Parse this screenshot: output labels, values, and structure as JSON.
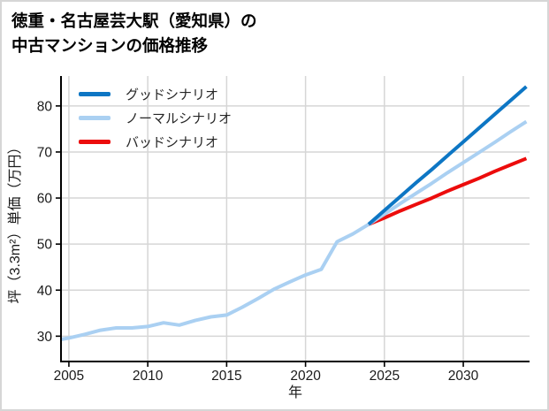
{
  "title": {
    "line1": "徳重・名古屋芸大駅（愛知県）の",
    "line2": "中古マンションの価格推移"
  },
  "chart_data": {
    "type": "line",
    "xlabel": "年",
    "ylabel": "坪（3.3m²）単価（万円）",
    "xlim": [
      2004.5,
      2034.2
    ],
    "ylim": [
      24.5,
      86.5
    ],
    "xticks": [
      2005,
      2010,
      2015,
      2020,
      2025,
      2030
    ],
    "yticks": [
      30,
      40,
      50,
      60,
      70,
      80
    ],
    "grid": true,
    "grid_color": "#d6d6d6",
    "legend_position": "upper-left-inside",
    "series": [
      {
        "name": "グッドシナリオ",
        "color": "#0d76c4",
        "in_legend": true,
        "x": [
          2024,
          2025,
          2026,
          2027,
          2028,
          2029,
          2030,
          2031,
          2032,
          2033,
          2034
        ],
        "values": [
          54.3,
          57.3,
          60.3,
          63.3,
          66.2,
          69.2,
          72.2,
          75.2,
          78.2,
          81.2,
          84.2
        ]
      },
      {
        "name": "ノーマルシナリオ",
        "color": "#aad0f2",
        "in_legend": true,
        "x": [
          2024,
          2025,
          2026,
          2027,
          2028,
          2029,
          2030,
          2031,
          2032,
          2033,
          2034
        ],
        "values": [
          54.3,
          56.5,
          58.8,
          61.0,
          63.2,
          65.5,
          67.7,
          69.9,
          72.1,
          74.4,
          76.6
        ]
      },
      {
        "name": "バッドシナリオ",
        "color": "#ec0c0c",
        "in_legend": true,
        "x": [
          2024,
          2025,
          2026,
          2027,
          2028,
          2029,
          2030,
          2031,
          2032,
          2033,
          2034
        ],
        "values": [
          54.3,
          55.7,
          57.2,
          58.6,
          60.0,
          61.5,
          62.9,
          64.3,
          65.8,
          67.2,
          68.6
        ]
      },
      {
        "name": "history",
        "color": "#aad0f2",
        "in_legend": false,
        "x": [
          2004.5,
          2005,
          2006,
          2007,
          2008,
          2009,
          2010,
          2011,
          2012,
          2013,
          2014,
          2015,
          2016,
          2017,
          2018,
          2019,
          2020,
          2021,
          2022,
          2023,
          2024
        ],
        "values": [
          29.3,
          29.6,
          30.4,
          31.3,
          31.8,
          31.8,
          32.1,
          32.9,
          32.4,
          33.4,
          34.2,
          34.6,
          36.3,
          38.2,
          40.2,
          41.8,
          43.3,
          44.5,
          50.5,
          52.2,
          54.3
        ]
      }
    ]
  }
}
